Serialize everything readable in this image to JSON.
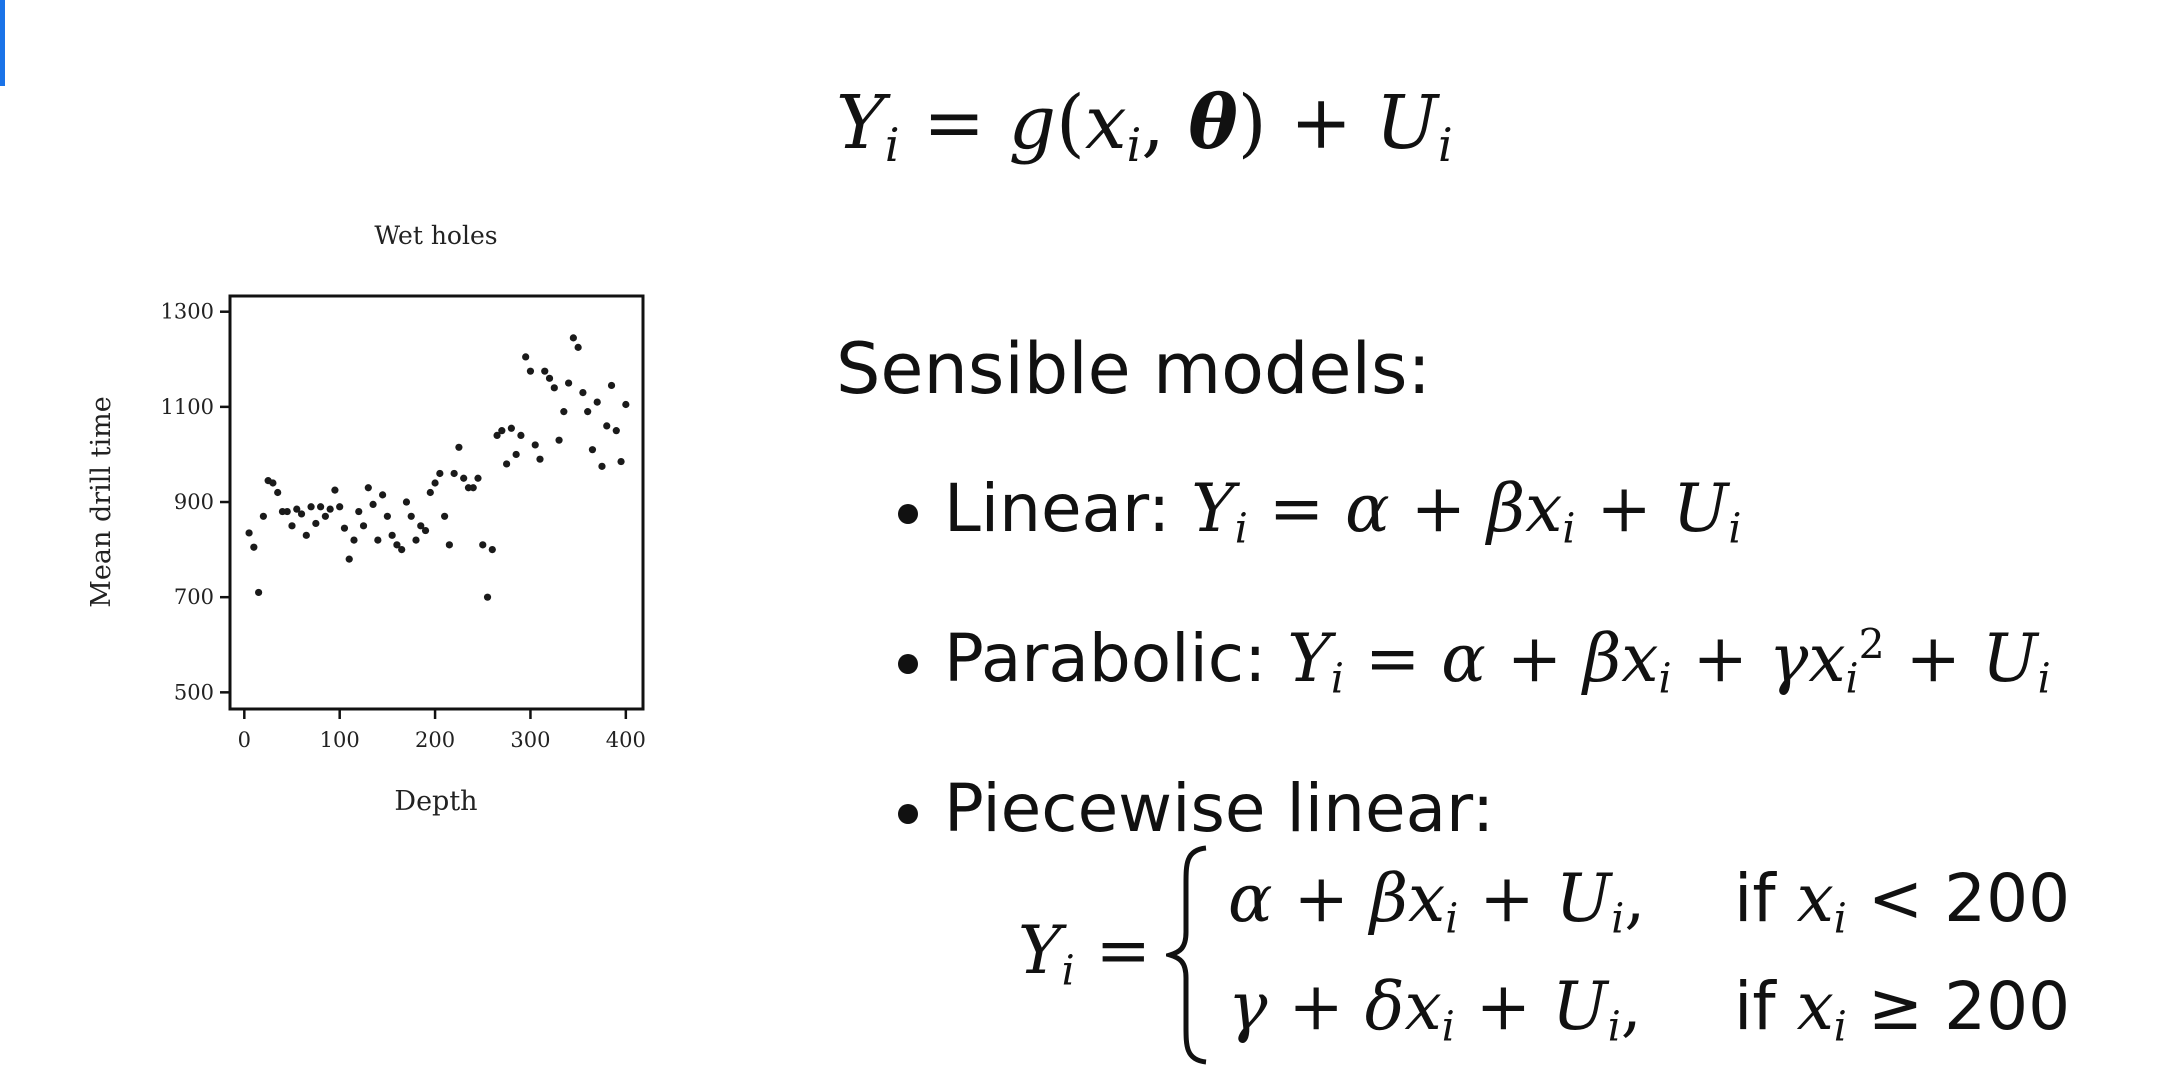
{
  "colors": {
    "accent": "#1a73e8",
    "points": "#1a1a1a"
  },
  "sensible_label": "Sensible models:",
  "bullets": {
    "linear_label": "Linear:",
    "parabolic_label": "Parabolic:",
    "piecewise_label": "Piecewise linear:"
  },
  "piecewise": {
    "cond_1": "if",
    "value_1": "200",
    "cond_2": "if",
    "value_2": "200"
  },
  "chart_data": {
    "type": "scatter",
    "title": "Wet holes",
    "xlabel": "Depth",
    "ylabel": "Mean drill time",
    "xlim": [
      -15,
      418
    ],
    "ylim": [
      465,
      1333
    ],
    "xticks": [
      0,
      100,
      200,
      300,
      400
    ],
    "yticks": [
      500,
      700,
      900,
      1100,
      1300
    ],
    "grid": false,
    "x": [
      5,
      10,
      15,
      20,
      25,
      30,
      35,
      40,
      45,
      50,
      55,
      60,
      65,
      70,
      75,
      80,
      85,
      90,
      95,
      100,
      105,
      110,
      115,
      120,
      125,
      130,
      135,
      140,
      145,
      150,
      155,
      160,
      165,
      170,
      175,
      180,
      185,
      190,
      195,
      200,
      205,
      210,
      215,
      220,
      225,
      230,
      235,
      240,
      245,
      250,
      255,
      260,
      265,
      270,
      275,
      280,
      285,
      290,
      295,
      300,
      305,
      310,
      315,
      320,
      325,
      330,
      335,
      340,
      345,
      350,
      355,
      360,
      365,
      370,
      375,
      380,
      385,
      390,
      395,
      400
    ],
    "y": [
      835,
      805,
      710,
      870,
      945,
      940,
      920,
      880,
      880,
      850,
      885,
      875,
      830,
      890,
      855,
      890,
      870,
      885,
      925,
      890,
      845,
      780,
      820,
      880,
      850,
      930,
      895,
      820,
      915,
      870,
      830,
      810,
      800,
      900,
      870,
      820,
      850,
      840,
      920,
      940,
      960,
      870,
      810,
      960,
      1015,
      950,
      930,
      930,
      950,
      810,
      700,
      800,
      1040,
      1050,
      980,
      1055,
      1000,
      1040,
      1205,
      1175,
      1020,
      990,
      1175,
      1160,
      1140,
      1030,
      1090,
      1150,
      1245,
      1225,
      1130,
      1090,
      1010,
      1110,
      975,
      1060,
      1145,
      1050,
      985,
      1105
    ]
  }
}
